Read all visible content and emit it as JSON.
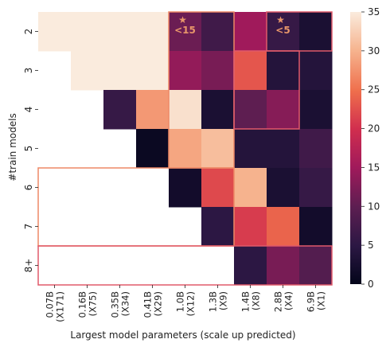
{
  "chart_data": {
    "type": "heatmap",
    "xlabel": "Largest model parameters (scale up predicted)",
    "ylabel": "#train models",
    "x_ticks": [
      {
        "line1": "0.07B",
        "line2": "(X171)"
      },
      {
        "line1": "0.16B",
        "line2": "(X75)"
      },
      {
        "line1": "0.35B",
        "line2": "(X34)"
      },
      {
        "line1": "0.41B",
        "line2": "(X29)"
      },
      {
        "line1": "1.0B",
        "line2": "(X12)"
      },
      {
        "line1": "1.3B",
        "line2": "(X9)"
      },
      {
        "line1": "1.4B",
        "line2": "(X8)"
      },
      {
        "line1": "2.8B",
        "line2": "(X4)"
      },
      {
        "line1": "6.9B",
        "line2": "(X1)"
      }
    ],
    "y_ticks": [
      "2",
      "3",
      "4",
      "5",
      "6",
      "7",
      "8+"
    ],
    "values": [
      [
        35,
        35,
        35,
        35,
        11,
        7,
        15,
        6,
        3
      ],
      [
        null,
        35,
        35,
        35,
        14,
        12,
        23,
        4,
        4
      ],
      [
        null,
        null,
        6,
        28,
        34,
        3,
        10,
        13,
        3
      ],
      [
        null,
        null,
        null,
        1,
        29,
        31,
        4,
        4,
        7
      ],
      [
        null,
        null,
        null,
        null,
        2,
        22,
        30,
        3,
        6
      ],
      [
        null,
        null,
        null,
        null,
        null,
        5,
        21,
        24,
        2
      ],
      [
        null,
        null,
        null,
        null,
        null,
        null,
        5,
        12,
        9
      ]
    ],
    "vmin": 0,
    "vmax": 35,
    "colorbar_ticks": [
      0,
      5,
      10,
      15,
      20,
      25,
      30,
      35
    ],
    "annotations": [
      {
        "row": 0,
        "col": 4,
        "text": "<15",
        "marker": "★"
      },
      {
        "row": 0,
        "col": 7,
        "text": "<5",
        "marker": "★"
      }
    ],
    "colors": {
      "highlight_outline": "#e05a6a",
      "orange_outline": "#ee8866",
      "annotation": "#e8966a"
    }
  }
}
